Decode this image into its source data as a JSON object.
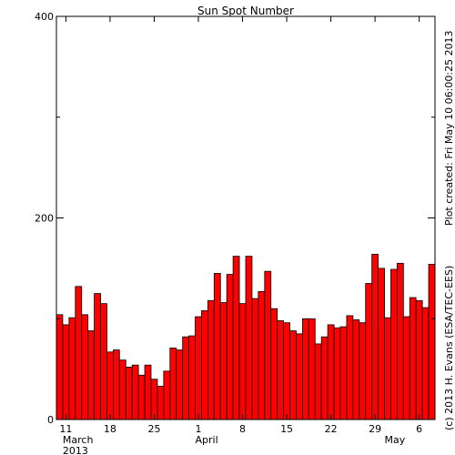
{
  "chart_data": {
    "type": "bar",
    "title": "Sun Spot Number",
    "categories": [
      null,
      "11",
      null,
      null,
      null,
      null,
      null,
      null,
      "18",
      null,
      null,
      null,
      null,
      null,
      null,
      "25",
      null,
      null,
      null,
      null,
      null,
      null,
      "1",
      null,
      null,
      null,
      null,
      null,
      null,
      "8",
      null,
      null,
      null,
      null,
      null,
      null,
      "15",
      null,
      null,
      null,
      null,
      null,
      null,
      "22",
      null,
      null,
      null,
      null,
      null,
      null,
      "29",
      null,
      null,
      null,
      null,
      null,
      null,
      "6",
      null,
      null
    ],
    "month_labels": [
      null,
      "March",
      null,
      null,
      null,
      null,
      null,
      null,
      null,
      null,
      null,
      null,
      null,
      null,
      null,
      null,
      null,
      null,
      null,
      null,
      null,
      null,
      "April",
      null,
      null,
      null,
      null,
      null,
      null,
      null,
      null,
      null,
      null,
      null,
      null,
      null,
      null,
      null,
      null,
      null,
      null,
      null,
      null,
      null,
      null,
      null,
      null,
      null,
      null,
      null,
      null,
      null,
      "May",
      null,
      null,
      null,
      null,
      null,
      null,
      null
    ],
    "year_labels": [
      null,
      "2013",
      null,
      null,
      null,
      null,
      null,
      null,
      null,
      null,
      null,
      null,
      null,
      null,
      null,
      null,
      null,
      null,
      null,
      null,
      null,
      null,
      null,
      null,
      null,
      null,
      null,
      null,
      null,
      null,
      null,
      null,
      null,
      null,
      null,
      null,
      null,
      null,
      null,
      null,
      null,
      null,
      null,
      null,
      null,
      null,
      null,
      null,
      null,
      null,
      null,
      null,
      null,
      null,
      null,
      null,
      null,
      null,
      null,
      null
    ],
    "values": [
      104,
      94,
      101,
      132,
      104,
      88,
      125,
      115,
      67,
      69,
      59,
      52,
      54,
      44,
      54,
      40,
      33,
      48,
      71,
      69,
      82,
      83,
      102,
      108,
      118,
      145,
      116,
      144,
      162,
      115,
      162,
      120,
      127,
      147,
      110,
      98,
      96,
      88,
      85,
      100,
      100,
      75,
      82,
      94,
      91,
      92,
      103,
      99,
      96,
      135,
      164,
      150,
      101,
      149,
      155,
      102,
      121,
      118,
      111,
      154
    ],
    "color": "#ff0000",
    "ylim": [
      0,
      400
    ],
    "yticks": [
      0,
      200,
      400
    ],
    "yminorticks": [
      100,
      300
    ],
    "annotations": [
      "Plot created: Fri May 10 06:00:25 2013",
      "(c) 2013 H. Evans (ESA/TEC-EES)"
    ]
  }
}
